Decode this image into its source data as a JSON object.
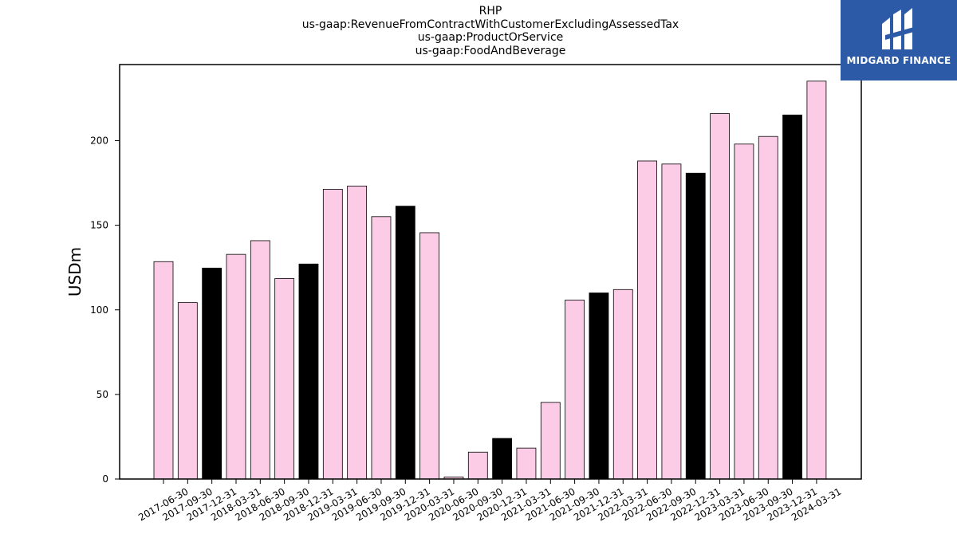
{
  "chart_data": {
    "type": "bar",
    "title_lines": [
      "RHP",
      "us-gaap:RevenueFromContractWithCustomerExcludingAssessedTax",
      "us-gaap:ProductOrService",
      "us-gaap:FoodAndBeverage"
    ],
    "ylabel": "USDm",
    "xlabel": "",
    "ylim": [
      0,
      245
    ],
    "yticks": [
      0,
      50,
      100,
      150,
      200
    ],
    "grid": false,
    "categories": [
      "2017-06-30",
      "2017-09-30",
      "2017-12-31",
      "2018-03-31",
      "2018-06-30",
      "2018-09-30",
      "2018-12-31",
      "2019-03-31",
      "2019-06-30",
      "2019-09-30",
      "2019-12-31",
      "2020-03-31",
      "2020-06-30",
      "2020-09-30",
      "2020-12-31",
      "2021-03-31",
      "2021-06-30",
      "2021-09-30",
      "2021-12-31",
      "2022-03-31",
      "2022-06-30",
      "2022-09-30",
      "2022-12-31",
      "2023-03-31",
      "2023-06-30",
      "2023-09-30",
      "2023-12-31",
      "2024-03-31"
    ],
    "values": [
      128.5,
      104.3,
      124.7,
      132.8,
      140.9,
      118.5,
      127.1,
      171.3,
      173.2,
      155.1,
      161.3,
      145.6,
      1.2,
      15.9,
      24.0,
      18.3,
      45.3,
      105.8,
      110.0,
      112.0,
      188.0,
      186.2,
      180.8,
      216.0,
      198.0,
      202.5,
      215.2,
      235.2
    ],
    "colors": {
      "quarter": "#fccbe5",
      "year_end": "#000000",
      "edge": "#000000"
    }
  },
  "logo": {
    "text": "MIDGARD FINANCE",
    "background": "#2d5aa6"
  }
}
